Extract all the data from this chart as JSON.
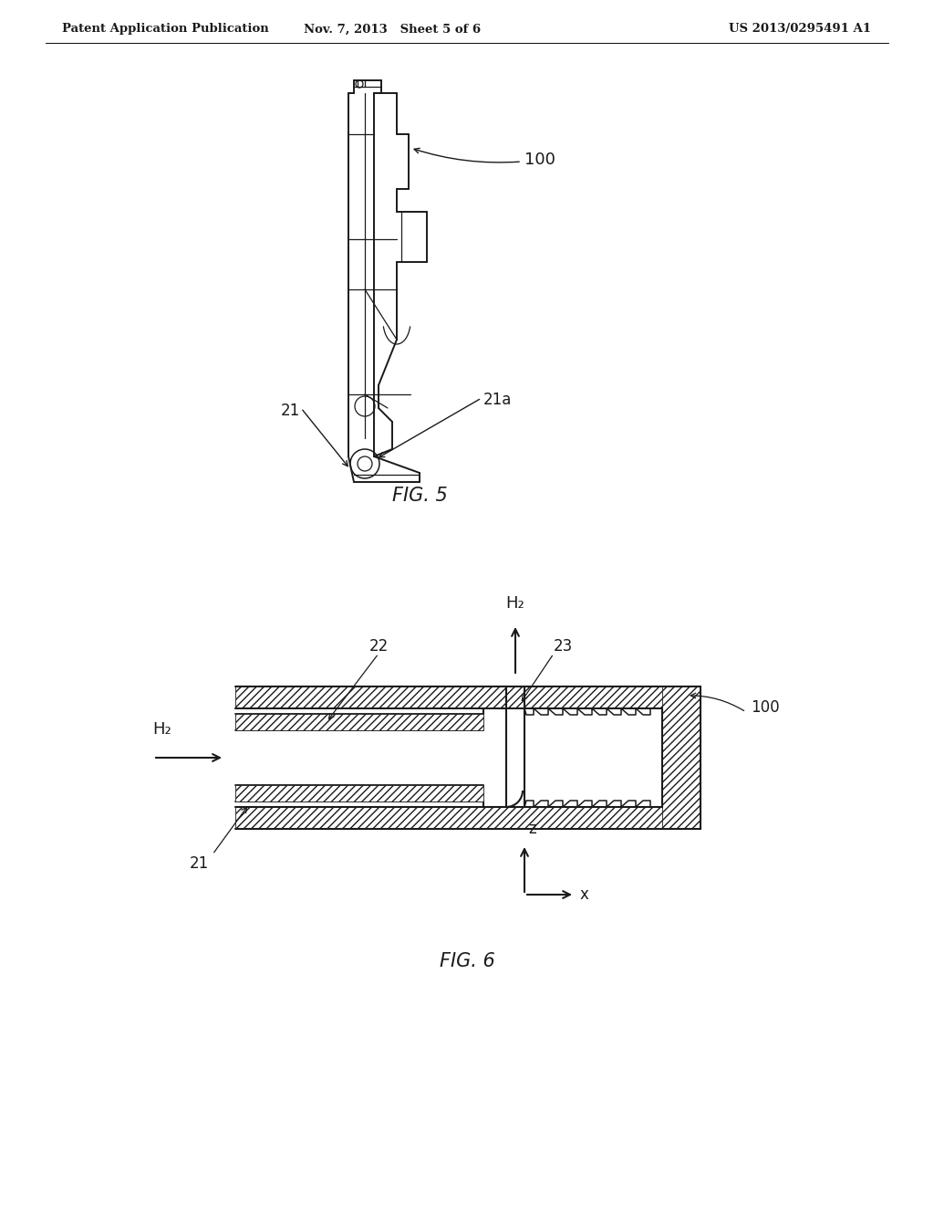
{
  "background_color": "#ffffff",
  "header_left": "Patent Application Publication",
  "header_center": "Nov. 7, 2013   Sheet 5 of 6",
  "header_right": "US 2013/0295491 A1",
  "fig5_label": "FIG. 5",
  "fig6_label": "FIG. 6",
  "line_color": "#1a1a1a",
  "labels": {
    "100_fig5": "100",
    "21_fig5": "21",
    "21a_fig5": "21a",
    "22_fig6": "22",
    "23_fig6": "23",
    "100_fig6": "100",
    "21_fig6": "21",
    "H2_top": "H₂",
    "H2_left": "H₂",
    "z_axis": "z",
    "x_axis": "x"
  }
}
